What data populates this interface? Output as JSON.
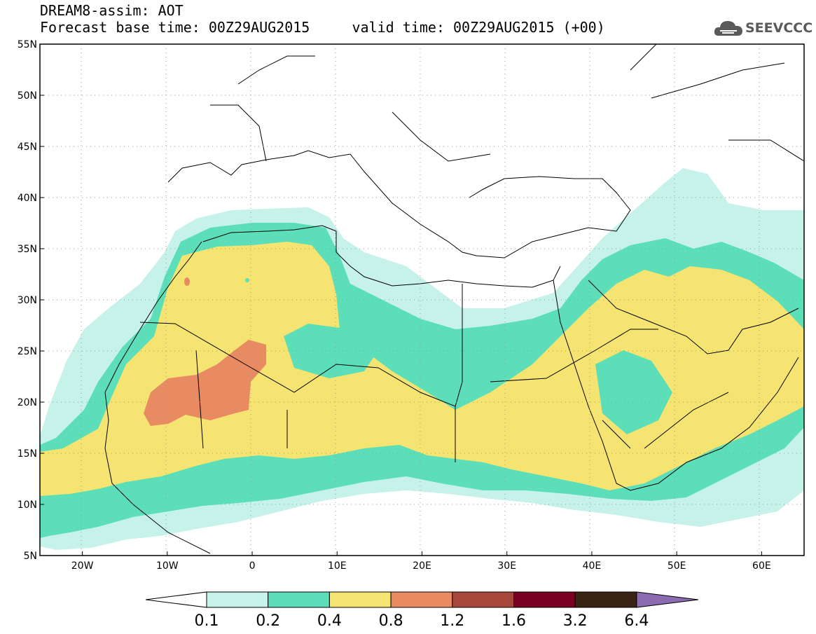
{
  "header": {
    "model_line": "DREAM8-assim: AOT",
    "time_line": "Forecast base time: 00Z29AUG2015     valid time: 00Z29AUG2015 (+00)"
  },
  "logo": {
    "text": "SEEVCCC",
    "icon": "cloud-icon"
  },
  "map": {
    "lon_range": [
      -25,
      65
    ],
    "lat_range": [
      5,
      55
    ],
    "lat_labels": [
      "55N",
      "50N",
      "45N",
      "40N",
      "35N",
      "30N",
      "25N",
      "20N",
      "15N",
      "10N",
      "5N"
    ],
    "lon_labels": [
      "20W",
      "10W",
      "0",
      "10E",
      "20E",
      "30E",
      "40E",
      "50E",
      "60E"
    ],
    "grid": "dotted"
  },
  "colorbar": {
    "labels": [
      "0.1",
      "0.2",
      "0.4",
      "0.8",
      "1.2",
      "1.6",
      "3.2",
      "6.4"
    ],
    "colors": [
      "#c6f2ea",
      "#5cdfb8",
      "#f5e471",
      "#e88a62",
      "#a8473b",
      "#7a0022",
      "#3b2413",
      "#8c6bb0"
    ]
  }
}
